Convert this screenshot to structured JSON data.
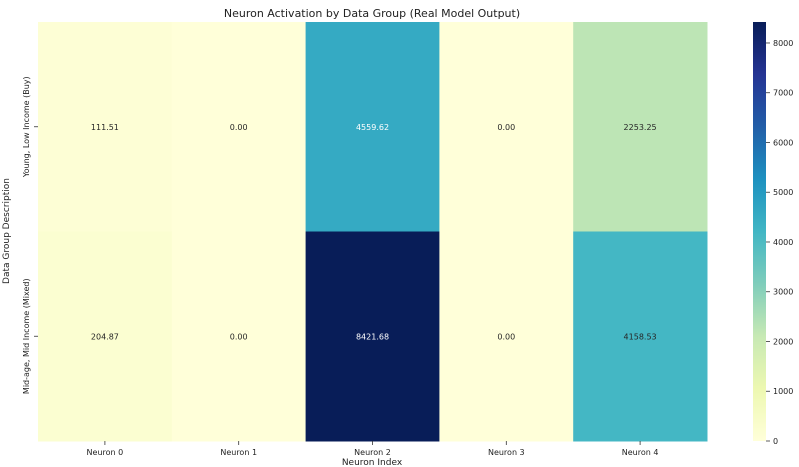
{
  "chart_data": {
    "type": "heatmap",
    "title": "Neuron Activation by Data Group (Real Model Output)",
    "xlabel": "Neuron Index",
    "ylabel": "Data Group Description",
    "x_categories": [
      "Neuron 0",
      "Neuron 1",
      "Neuron 2",
      "Neuron 3",
      "Neuron 4"
    ],
    "y_categories": [
      "Young, Low Income (Buy)",
      "Mid-age, Mid Income (Mixed)"
    ],
    "values": [
      [
        111.51,
        0.0,
        4559.62,
        0.0,
        2253.25
      ],
      [
        204.87,
        0.0,
        8421.68,
        0.0,
        4158.53
      ]
    ],
    "value_labels": [
      [
        "111.51",
        "0.00",
        "4559.62",
        "0.00",
        "2253.25"
      ],
      [
        "204.87",
        "0.00",
        "8421.68",
        "0.00",
        "4158.53"
      ]
    ],
    "colorscale": "YlGnBu",
    "colorbar_range": [
      0,
      8421.68
    ],
    "colorbar_ticks": [
      0,
      1000,
      2000,
      3000,
      4000,
      5000,
      6000,
      7000,
      8000
    ]
  }
}
